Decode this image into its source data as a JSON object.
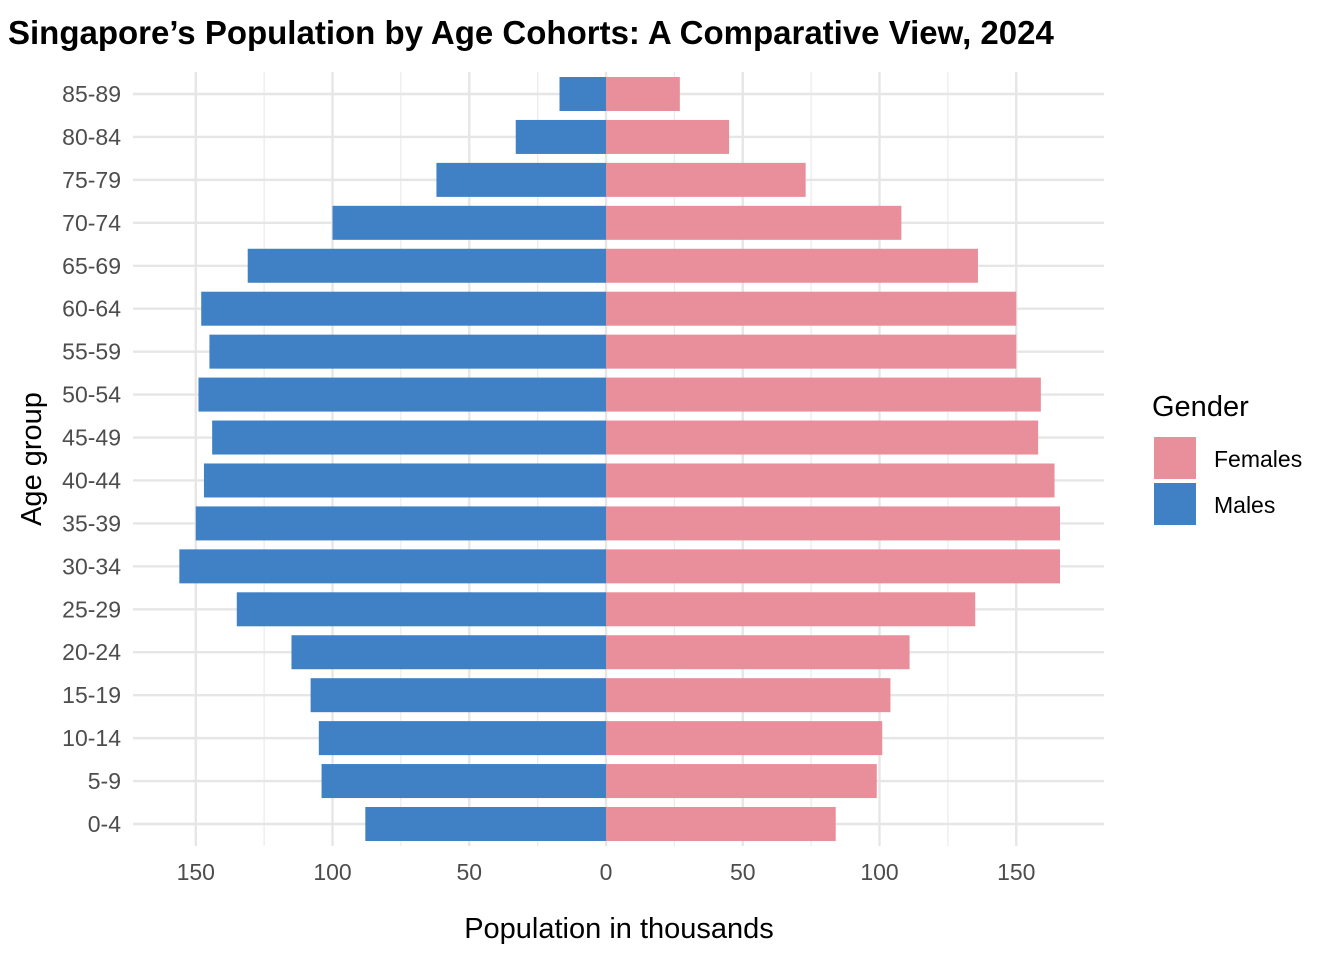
{
  "chart_data": {
    "type": "bar",
    "orientation": "horizontal",
    "title": "Singapore’s Population by Age Cohorts: A Comparative View, 2024",
    "xlabel": "Population in thousands",
    "ylabel": "Age group",
    "xlim": [
      -175,
      175
    ],
    "x_ticks": [
      -150,
      -100,
      -50,
      0,
      50,
      100,
      150
    ],
    "x_tick_labels": [
      "150",
      "100",
      "50",
      "0",
      "50",
      "100",
      "150"
    ],
    "grid": true,
    "legend": {
      "title": "Gender",
      "position": "right"
    },
    "categories": [
      "0-4",
      "5-9",
      "10-14",
      "15-19",
      "20-24",
      "25-29",
      "30-34",
      "35-39",
      "40-44",
      "45-49",
      "50-54",
      "55-59",
      "60-64",
      "65-69",
      "70-74",
      "75-79",
      "80-84",
      "85-89"
    ],
    "series": [
      {
        "name": "Females",
        "color": "#e98f9b",
        "side": "right",
        "values": [
          84,
          99,
          101,
          104,
          111,
          135,
          166,
          166,
          164,
          158,
          159,
          150,
          150,
          136,
          108,
          73,
          45,
          27
        ]
      },
      {
        "name": "Males",
        "color": "#4080c4",
        "side": "left",
        "values": [
          88,
          104,
          105,
          108,
          115,
          135,
          156,
          150,
          147,
          144,
          149,
          145,
          148,
          131,
          100,
          62,
          33,
          17
        ]
      }
    ]
  }
}
